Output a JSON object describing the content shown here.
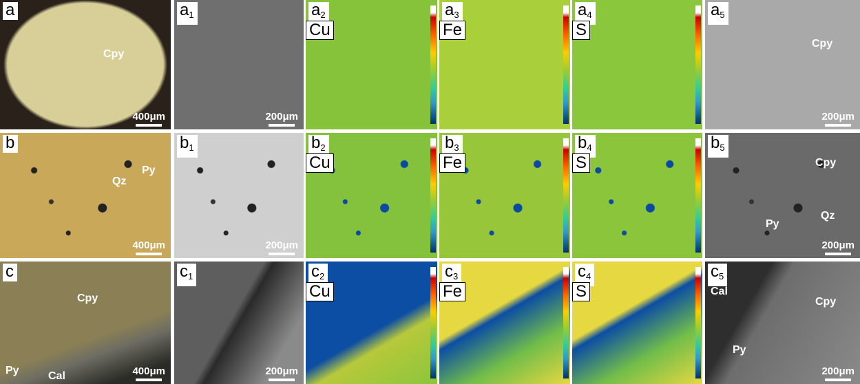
{
  "rows": [
    {
      "panels": [
        {
          "label": "a",
          "minerals": [
            "Cpy"
          ],
          "scale_bar": "400μm"
        },
        {
          "label": "a",
          "subscript": "1",
          "scale_bar": "200μm"
        },
        {
          "label": "a",
          "subscript": "2",
          "element": "Cu"
        },
        {
          "label": "a",
          "subscript": "3",
          "element": "Fe"
        },
        {
          "label": "a",
          "subscript": "4",
          "element": "S"
        },
        {
          "label": "a",
          "subscript": "5",
          "minerals": [
            "Cpy"
          ],
          "scale_bar": "200μm"
        }
      ]
    },
    {
      "panels": [
        {
          "label": "b",
          "minerals": [
            "Qz",
            "Py"
          ],
          "scale_bar": "400μm"
        },
        {
          "label": "b",
          "subscript": "1",
          "scale_bar": "200μm"
        },
        {
          "label": "b",
          "subscript": "2",
          "element": "Cu"
        },
        {
          "label": "b",
          "subscript": "3",
          "element": "Fe"
        },
        {
          "label": "b",
          "subscript": "4",
          "element": "S"
        },
        {
          "label": "b",
          "subscript": "5",
          "minerals": [
            "Cpy",
            "Qz",
            "Py"
          ],
          "scale_bar": "200μm"
        }
      ]
    },
    {
      "panels": [
        {
          "label": "c",
          "minerals": [
            "Cpy",
            "Py",
            "Cal"
          ],
          "scale_bar": "400μm"
        },
        {
          "label": "c",
          "subscript": "1",
          "scale_bar": "200μm"
        },
        {
          "label": "c",
          "subscript": "2",
          "element": "Cu"
        },
        {
          "label": "c",
          "subscript": "3",
          "element": "Fe"
        },
        {
          "label": "c",
          "subscript": "4",
          "element": "S"
        },
        {
          "label": "c",
          "subscript": "5",
          "minerals": [
            "Cal",
            "Cpy",
            "Py"
          ],
          "scale_bar": "200μm"
        }
      ]
    }
  ]
}
